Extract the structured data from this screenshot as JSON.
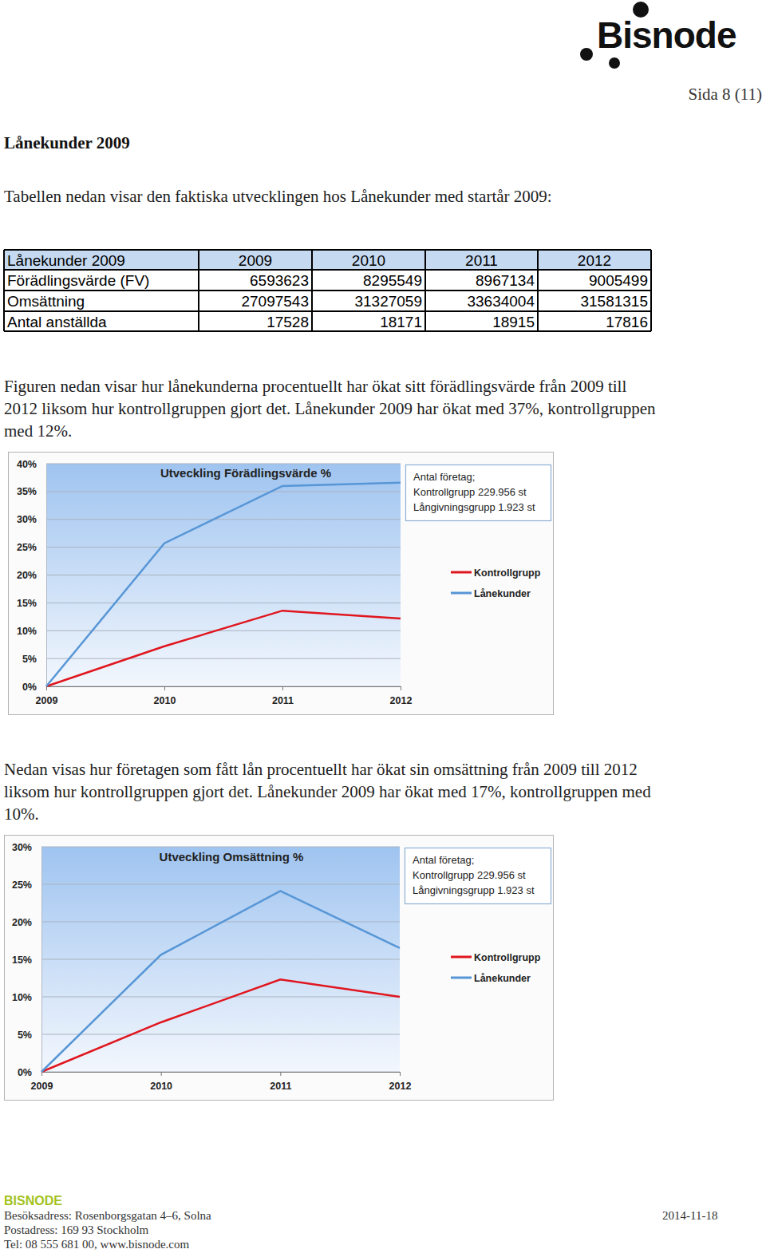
{
  "header": {
    "logo": "Bisnode",
    "page": "Sida 8 (11)"
  },
  "heading": "Lånekunder 2009",
  "intro": "Tabellen nedan visar den faktiska utvecklingen hos Lånekunder med startår 2009:",
  "table": {
    "columns": [
      "Lånekunder 2009",
      "2009",
      "2010",
      "2011",
      "2012"
    ],
    "rows": [
      [
        "Förädlingsvärde (FV)",
        6593623,
        8295549,
        8967134,
        9005499
      ],
      [
        "Omsättning",
        27097543,
        31327059,
        33634004,
        31581315
      ],
      [
        "Antal anställda",
        17528,
        18171,
        18915,
        17816
      ]
    ]
  },
  "paragraphs": [
    [
      "Figuren nedan visar hur lånekunderna procentuellt har ökat sitt förädlingsvärde från 2009 till",
      "2012 liksom hur kontrollgruppen gjort det. Lånekunder 2009 har ökat med 37%, kontrollgruppen",
      "med 12%."
    ],
    [
      "Nedan visas hur företagen som fått lån procentuellt har ökat sin omsättning från 2009 till 2012",
      "liksom hur kontrollgruppen gjort det. Lånekunder 2009 har ökat med 17%, kontrollgruppen med",
      "10%."
    ]
  ],
  "chart_data": [
    {
      "type": "line",
      "title": "Utveckling Förädlingsvärde %",
      "annotations": [
        "Antal företag;",
        "Kontrollgrupp 229.956 st",
        "Långivningsgrupp 1.923 st"
      ],
      "categories": [
        "2009",
        "2010",
        "2011",
        "2012"
      ],
      "series": [
        {
          "name": "Kontrollgrupp",
          "color": "#e0161f",
          "values": [
            0,
            7.2,
            13.6,
            12.2
          ]
        },
        {
          "name": "Lånekunder",
          "color": "#5796d6",
          "values": [
            0,
            25.7,
            36.0,
            36.6
          ]
        }
      ],
      "ylim": [
        0,
        40
      ],
      "yticks": [
        {
          "value": 0,
          "label": "0%"
        },
        {
          "value": 5,
          "label": "5%"
        },
        {
          "value": 10,
          "label": "10%"
        },
        {
          "value": 15,
          "label": "15%"
        },
        {
          "value": 20,
          "label": "20%"
        },
        {
          "value": 25,
          "label": "25%"
        },
        {
          "value": 30,
          "label": "30%"
        },
        {
          "value": 35,
          "label": "35%"
        },
        {
          "value": 40,
          "label": "40%"
        }
      ],
      "grid": true,
      "legend": "right"
    },
    {
      "type": "line",
      "title": "Utveckling Omsättning %",
      "annotations": [
        "Antal företag;",
        "Kontrollgrupp 229.956 st",
        "Långivningsgrupp 1.923 st"
      ],
      "categories": [
        "2009",
        "2010",
        "2011",
        "2012"
      ],
      "series": [
        {
          "name": "Kontrollgrupp",
          "color": "#e0161f",
          "values": [
            0,
            6.6,
            12.3,
            10.0
          ]
        },
        {
          "name": "Lånekunder",
          "color": "#5796d6",
          "values": [
            0,
            15.6,
            24.1,
            16.5
          ]
        }
      ],
      "ylim": [
        0,
        30
      ],
      "yticks": [
        {
          "value": 0,
          "label": "0%"
        },
        {
          "value": 5,
          "label": "5%"
        },
        {
          "value": 10,
          "label": "10%"
        },
        {
          "value": 15,
          "label": "15%"
        },
        {
          "value": 20,
          "label": "20%"
        },
        {
          "value": 25,
          "label": "25%"
        },
        {
          "value": 30,
          "label": "30%"
        }
      ],
      "grid": true,
      "legend": "right"
    }
  ],
  "footer": {
    "company": "BISNODE",
    "lines": [
      "Besöksadress: Rosenborgsgatan 4–6, Solna",
      "Postadress: 169 93 Stockholm",
      "Tel: 08 555 681 00, www.bisnode.com"
    ],
    "date": "2014-11-18"
  }
}
